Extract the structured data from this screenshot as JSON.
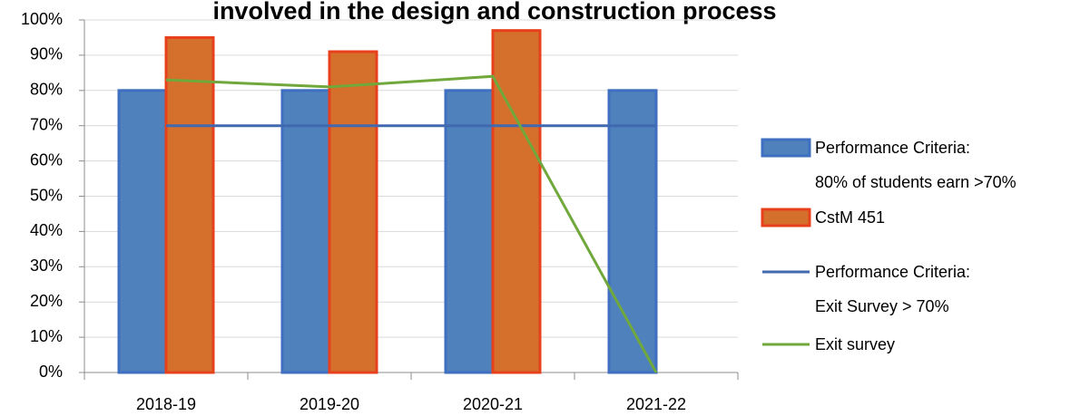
{
  "chart_data": {
    "type": "bar",
    "title": "involved in the design and construction process",
    "categories": [
      "2018-19",
      "2019-20",
      "2020-21",
      "2021-22"
    ],
    "series": [
      {
        "name": "Performance Criteria:\n80% of students earn >70%",
        "type": "bar",
        "color": "#4f81bd",
        "edge": "#3f6fc0",
        "values": [
          80,
          80,
          80,
          80
        ]
      },
      {
        "name": "CstM 451",
        "type": "bar",
        "color": "#d4702b",
        "edge": "#e8401c",
        "values": [
          95,
          91,
          97,
          null
        ]
      },
      {
        "name": "Performance Criteria:\nExit Survey > 70%",
        "type": "line",
        "color": "#4169b0",
        "values": [
          70,
          70,
          70,
          70
        ]
      },
      {
        "name": "Exit survey",
        "type": "line",
        "color": "#70a83c",
        "values": [
          83,
          81,
          84,
          0
        ]
      }
    ],
    "ylim": [
      0,
      100
    ],
    "yticks": [
      {
        "value": 0,
        "label": "0%"
      },
      {
        "value": 10,
        "label": "10%"
      },
      {
        "value": 20,
        "label": "20%"
      },
      {
        "value": 30,
        "label": "30%"
      },
      {
        "value": 40,
        "label": "40%"
      },
      {
        "value": 50,
        "label": "50%"
      },
      {
        "value": 60,
        "label": "60%"
      },
      {
        "value": 70,
        "label": "70%"
      },
      {
        "value": 80,
        "label": "80%"
      },
      {
        "value": 90,
        "label": "90%"
      },
      {
        "value": 100,
        "label": "100%"
      }
    ],
    "grid": true,
    "legend": "right"
  }
}
